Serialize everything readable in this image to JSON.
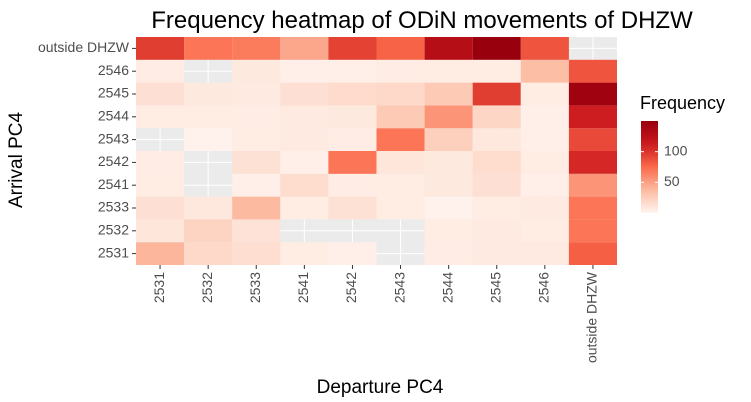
{
  "chart_data": {
    "type": "heatmap",
    "title": "Frequency heatmap of ODiN movements of DHZW",
    "xlabel": "Departure PC4",
    "ylabel": "Arrival PC4",
    "x_categories": [
      "2531",
      "2532",
      "2533",
      "2541",
      "2542",
      "2543",
      "2544",
      "2545",
      "2546",
      "outside DHZW"
    ],
    "y_categories": [
      "2531",
      "2532",
      "2533",
      "2541",
      "2542",
      "2543",
      "2544",
      "2545",
      "2546",
      "outside DHZW"
    ],
    "values": [
      [
        40,
        18,
        15,
        6,
        4,
        null,
        5,
        7,
        7,
        80
      ],
      [
        10,
        22,
        12,
        null,
        null,
        null,
        6,
        7,
        6,
        70
      ],
      [
        14,
        9,
        38,
        6,
        13,
        6,
        2,
        6,
        7,
        70
      ],
      [
        6,
        null,
        4,
        16,
        5,
        6,
        8,
        14,
        4,
        55
      ],
      [
        5,
        null,
        13,
        4,
        70,
        10,
        8,
        16,
        6,
        105
      ],
      [
        null,
        2,
        6,
        7,
        5,
        70,
        24,
        9,
        4,
        90
      ],
      [
        6,
        6,
        5,
        7,
        8,
        28,
        55,
        20,
        4,
        110
      ],
      [
        14,
        8,
        7,
        14,
        17,
        18,
        28,
        95,
        6,
        145
      ],
      [
        5,
        null,
        8,
        4,
        4,
        5,
        6,
        6,
        35,
        85
      ],
      [
        95,
        70,
        67,
        47,
        93,
        78,
        128,
        150,
        85,
        null
      ]
    ],
    "legend": {
      "title": "Frequency",
      "ticks": [
        50,
        100
      ],
      "range": [
        0,
        150
      ],
      "low_color": "#fff5f0",
      "high_color": "#99000d",
      "placement": "right"
    },
    "na_color": "#ebebeb",
    "grid": true
  }
}
